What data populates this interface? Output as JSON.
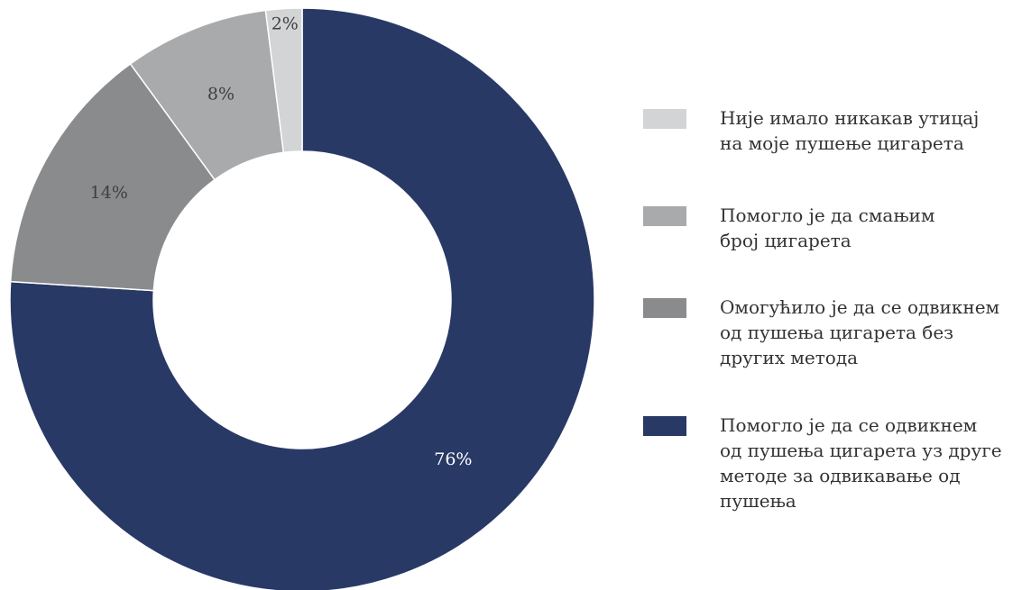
{
  "chart_data": {
    "type": "pie",
    "donut": true,
    "title": "",
    "legend_position": "right",
    "slices": [
      {
        "label": "Помогло је да се одвикнем\nод пушења цигарета уз друге\nметоде за одвикавање од\nпушења",
        "value": 76,
        "value_label": "76%",
        "color": "#293966",
        "label_color": "#ffffff"
      },
      {
        "label": "Омогућило је да се одвикнем\nод пушења цигарета без\nдругих метода",
        "value": 14,
        "value_label": "14%",
        "color": "#8a8b8d",
        "label_color": "#404040"
      },
      {
        "label": "Помогло је да смањим\nброј цигарета",
        "value": 8,
        "value_label": "8%",
        "color": "#a9aaac",
        "label_color": "#404040"
      },
      {
        "label": "Није имало никакав утицај\nна моје пушење цигарета",
        "value": 2,
        "value_label": "2%",
        "color": "#d3d4d6",
        "label_color": "#404040"
      }
    ],
    "legend_order": [
      3,
      2,
      1,
      0
    ]
  }
}
